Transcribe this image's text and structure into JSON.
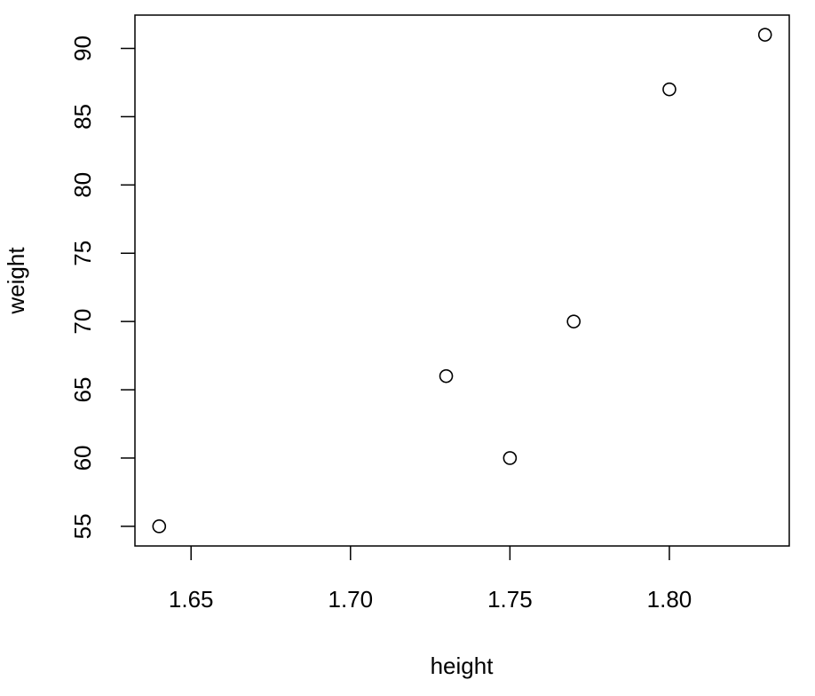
{
  "chart_data": {
    "type": "scatter",
    "x_label": "height",
    "y_label": "weight",
    "x": [
      1.64,
      1.73,
      1.75,
      1.77,
      1.8,
      1.83
    ],
    "values": [
      55,
      66,
      60,
      70,
      87,
      91
    ],
    "color": "#000000",
    "xlim": [
      1.6324,
      1.8376
    ],
    "xticks": [
      1.65,
      {
        "value": 1.7,
        "label": "1.70"
      },
      1.75,
      {
        "value": 1.8,
        "label": "1.80"
      }
    ],
    "ylim": [
      53.56,
      92.44
    ],
    "yticks": [
      55,
      60,
      65,
      70,
      75,
      80,
      85,
      90
    ]
  }
}
